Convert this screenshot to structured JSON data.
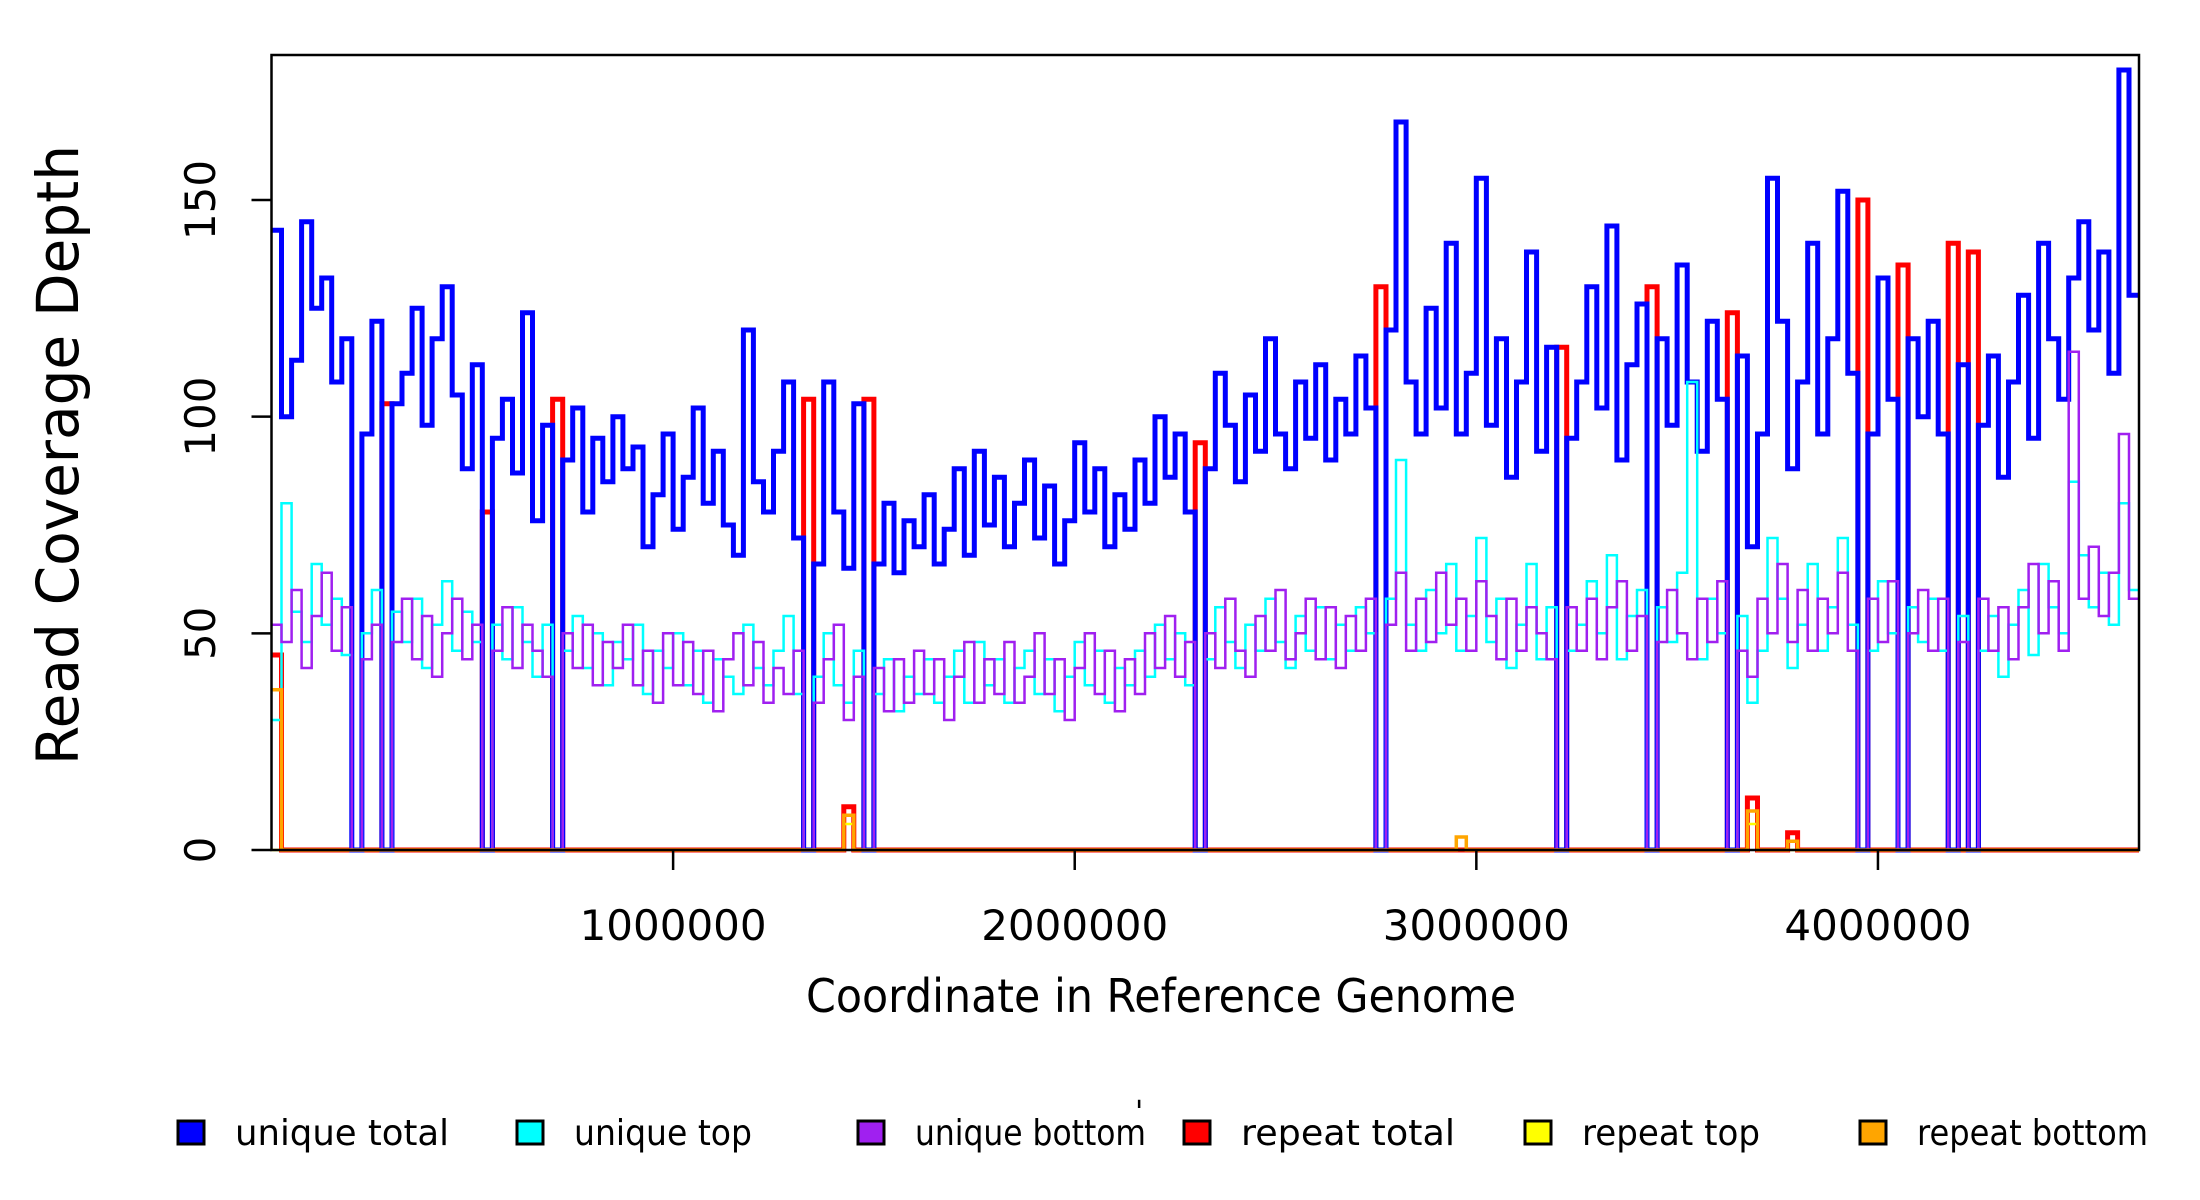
{
  "figure": {
    "background": "#ffffff",
    "axis_color": "#000000"
  },
  "chart_data": {
    "type": "line",
    "subtype": "step-coverage",
    "title": "",
    "xlabel": "Coordinate in Reference Genome",
    "ylabel": "Read Coverage Depth",
    "xlim": [
      0,
      4650000
    ],
    "ylim": [
      0,
      183
    ],
    "grid": false,
    "legend_position": "bottom",
    "bin_size": 25000,
    "n_bins": 186,
    "x_ticks": [
      {
        "value": 1000000,
        "label": "1000000"
      },
      {
        "value": 2000000,
        "label": "2000000"
      },
      {
        "value": 3000000,
        "label": "3000000"
      },
      {
        "value": 4000000,
        "label": "4000000"
      }
    ],
    "y_ticks": [
      {
        "value": 0,
        "label": "0"
      },
      {
        "value": 50,
        "label": "50"
      },
      {
        "value": 100,
        "label": "100"
      },
      {
        "value": 150,
        "label": "150"
      }
    ],
    "draw_order": [
      "repeat total",
      "unique total",
      "unique top",
      "unique bottom",
      "repeat top",
      "repeat bottom"
    ],
    "series": [
      {
        "name": "unique total",
        "color": "#0000FF",
        "lw": 5,
        "values": [
          143,
          100,
          113,
          145,
          125,
          132,
          108,
          118,
          0,
          96,
          122,
          0,
          103,
          110,
          125,
          98,
          118,
          130,
          105,
          88,
          112,
          0,
          95,
          104,
          87,
          124,
          76,
          98,
          0,
          90,
          102,
          78,
          95,
          85,
          100,
          88,
          93,
          70,
          82,
          96,
          74,
          86,
          102,
          80,
          92,
          75,
          68,
          120,
          85,
          78,
          92,
          108,
          72,
          0,
          66,
          108,
          78,
          65,
          103,
          0,
          66,
          80,
          64,
          76,
          70,
          82,
          66,
          74,
          88,
          68,
          92,
          75,
          86,
          70,
          80,
          90,
          72,
          84,
          66,
          76,
          94,
          78,
          88,
          70,
          82,
          74,
          90,
          80,
          100,
          86,
          96,
          78,
          0,
          88,
          110,
          98,
          85,
          105,
          92,
          118,
          96,
          88,
          108,
          95,
          112,
          90,
          104,
          96,
          114,
          102,
          0,
          120,
          168,
          108,
          96,
          125,
          102,
          140,
          96,
          110,
          155,
          98,
          118,
          86,
          108,
          138,
          92,
          116,
          0,
          95,
          108,
          130,
          102,
          144,
          90,
          112,
          126,
          0,
          118,
          98,
          135,
          108,
          92,
          122,
          104,
          0,
          114,
          70,
          96,
          155,
          122,
          88,
          108,
          140,
          96,
          118,
          152,
          110,
          0,
          96,
          132,
          104,
          0,
          118,
          100,
          122,
          96,
          0,
          112,
          0,
          98,
          114,
          86,
          108,
          128,
          95,
          140,
          118,
          104,
          132,
          145,
          120,
          138,
          110,
          180,
          128
        ]
      },
      {
        "name": "unique top",
        "color": "#00FFFF",
        "lw": 2.5,
        "values": [
          30,
          80,
          55,
          48,
          66,
          52,
          58,
          45,
          0,
          50,
          60,
          0,
          55,
          48,
          58,
          42,
          52,
          62,
          46,
          55,
          48,
          0,
          52,
          44,
          56,
          48,
          40,
          52,
          0,
          46,
          54,
          42,
          50,
          38,
          48,
          44,
          52,
          36,
          46,
          42,
          50,
          38,
          46,
          34,
          44,
          40,
          36,
          52,
          42,
          38,
          46,
          54,
          36,
          0,
          40,
          50,
          38,
          34,
          46,
          0,
          36,
          44,
          32,
          40,
          36,
          44,
          34,
          40,
          46,
          34,
          48,
          38,
          44,
          34,
          42,
          46,
          36,
          44,
          32,
          40,
          48,
          38,
          46,
          34,
          42,
          38,
          46,
          40,
          52,
          44,
          50,
          38,
          0,
          44,
          56,
          48,
          42,
          52,
          46,
          58,
          48,
          42,
          54,
          46,
          56,
          44,
          52,
          46,
          56,
          50,
          0,
          58,
          90,
          52,
          46,
          60,
          50,
          66,
          46,
          54,
          72,
          48,
          58,
          42,
          52,
          66,
          44,
          56,
          0,
          46,
          52,
          62,
          50,
          68,
          44,
          54,
          60,
          0,
          56,
          48,
          64,
          108,
          44,
          58,
          50,
          0,
          54,
          34,
          46,
          72,
          58,
          42,
          52,
          66,
          46,
          56,
          72,
          52,
          0,
          46,
          62,
          50,
          0,
          56,
          48,
          58,
          46,
          0,
          54,
          0,
          46,
          54,
          40,
          52,
          60,
          45,
          66,
          56,
          50,
          85,
          68,
          56,
          64,
          52,
          80,
          60
        ]
      },
      {
        "name": "unique bottom",
        "color": "#A020F0",
        "lw": 2.5,
        "values": [
          52,
          48,
          60,
          42,
          54,
          64,
          46,
          56,
          0,
          44,
          52,
          0,
          48,
          58,
          44,
          54,
          40,
          50,
          58,
          44,
          52,
          0,
          46,
          56,
          42,
          52,
          46,
          40,
          0,
          50,
          42,
          52,
          38,
          48,
          42,
          52,
          38,
          46,
          34,
          50,
          38,
          48,
          36,
          46,
          32,
          44,
          50,
          38,
          48,
          34,
          42,
          36,
          46,
          0,
          34,
          44,
          52,
          30,
          40,
          0,
          42,
          32,
          44,
          34,
          46,
          36,
          44,
          30,
          40,
          48,
          34,
          44,
          36,
          48,
          34,
          40,
          50,
          36,
          44,
          30,
          42,
          50,
          36,
          46,
          32,
          44,
          36,
          50,
          42,
          54,
          40,
          48,
          0,
          50,
          42,
          58,
          46,
          40,
          54,
          46,
          60,
          44,
          50,
          58,
          44,
          56,
          42,
          54,
          46,
          58,
          0,
          52,
          64,
          46,
          58,
          48,
          64,
          52,
          58,
          46,
          62,
          54,
          44,
          58,
          46,
          56,
          50,
          44,
          0,
          56,
          46,
          58,
          44,
          56,
          62,
          46,
          54,
          0,
          48,
          60,
          50,
          44,
          58,
          48,
          62,
          0,
          46,
          40,
          58,
          50,
          66,
          48,
          60,
          46,
          58,
          50,
          64,
          46,
          0,
          58,
          48,
          62,
          0,
          50,
          60,
          46,
          58,
          0,
          48,
          0,
          58,
          46,
          56,
          44,
          56,
          66,
          50,
          62,
          46,
          115,
          58,
          70,
          54,
          64,
          96,
          58
        ]
      },
      {
        "name": "repeat total",
        "color": "#FF0000",
        "lw": 5,
        "spikes": {
          "0": 45,
          "11": 103,
          "21": 78,
          "28": 104,
          "53": 104,
          "57": 10,
          "59": 104,
          "92": 94,
          "110": 130,
          "128": 116,
          "137": 130,
          "145": 124,
          "147": 12,
          "151": 4,
          "158": 150,
          "162": 135,
          "167": 140,
          "169": 138
        }
      },
      {
        "name": "repeat top",
        "color": "#FFFF00",
        "lw": 2.5,
        "spikes": {
          "57": 6,
          "147": 6
        }
      },
      {
        "name": "repeat bottom",
        "color": "#FFA500",
        "lw": 3.5,
        "spikes": {
          "0": 37,
          "57": 8,
          "118": 3,
          "147": 9,
          "151": 2
        }
      }
    ]
  },
  "legend": {
    "items": [
      {
        "label": "unique total",
        "color": "#0000FF"
      },
      {
        "label": "unique top",
        "color": "#00FFFF"
      },
      {
        "label": "unique bottom",
        "color": "#A020F0"
      },
      {
        "label": "repeat total",
        "color": "#FF0000"
      },
      {
        "label": "repeat top",
        "color": "#FFFF00"
      },
      {
        "label": "repeat bottom",
        "color": "#FFA500"
      }
    ],
    "artifact_mark": "'"
  }
}
